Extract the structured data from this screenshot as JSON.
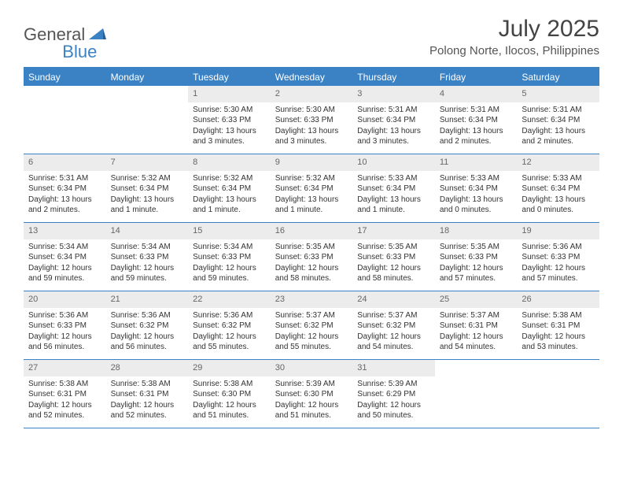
{
  "brand": {
    "part1": "General",
    "part2": "Blue"
  },
  "title": "July 2025",
  "location": "Polong Norte, Ilocos, Philippines",
  "colors": {
    "accent": "#3b82c4",
    "header_bg": "#3b82c4",
    "header_text": "#ffffff",
    "daynum_bg": "#ececec",
    "border": "#3b82c4",
    "text": "#333333"
  },
  "day_labels": [
    "Sunday",
    "Monday",
    "Tuesday",
    "Wednesday",
    "Thursday",
    "Friday",
    "Saturday"
  ],
  "weeks": [
    [
      {
        "n": "",
        "sr": "",
        "ss": "",
        "dl": ""
      },
      {
        "n": "",
        "sr": "",
        "ss": "",
        "dl": ""
      },
      {
        "n": "1",
        "sr": "Sunrise: 5:30 AM",
        "ss": "Sunset: 6:33 PM",
        "dl": "Daylight: 13 hours and 3 minutes."
      },
      {
        "n": "2",
        "sr": "Sunrise: 5:30 AM",
        "ss": "Sunset: 6:33 PM",
        "dl": "Daylight: 13 hours and 3 minutes."
      },
      {
        "n": "3",
        "sr": "Sunrise: 5:31 AM",
        "ss": "Sunset: 6:34 PM",
        "dl": "Daylight: 13 hours and 3 minutes."
      },
      {
        "n": "4",
        "sr": "Sunrise: 5:31 AM",
        "ss": "Sunset: 6:34 PM",
        "dl": "Daylight: 13 hours and 2 minutes."
      },
      {
        "n": "5",
        "sr": "Sunrise: 5:31 AM",
        "ss": "Sunset: 6:34 PM",
        "dl": "Daylight: 13 hours and 2 minutes."
      }
    ],
    [
      {
        "n": "6",
        "sr": "Sunrise: 5:31 AM",
        "ss": "Sunset: 6:34 PM",
        "dl": "Daylight: 13 hours and 2 minutes."
      },
      {
        "n": "7",
        "sr": "Sunrise: 5:32 AM",
        "ss": "Sunset: 6:34 PM",
        "dl": "Daylight: 13 hours and 1 minute."
      },
      {
        "n": "8",
        "sr": "Sunrise: 5:32 AM",
        "ss": "Sunset: 6:34 PM",
        "dl": "Daylight: 13 hours and 1 minute."
      },
      {
        "n": "9",
        "sr": "Sunrise: 5:32 AM",
        "ss": "Sunset: 6:34 PM",
        "dl": "Daylight: 13 hours and 1 minute."
      },
      {
        "n": "10",
        "sr": "Sunrise: 5:33 AM",
        "ss": "Sunset: 6:34 PM",
        "dl": "Daylight: 13 hours and 1 minute."
      },
      {
        "n": "11",
        "sr": "Sunrise: 5:33 AM",
        "ss": "Sunset: 6:34 PM",
        "dl": "Daylight: 13 hours and 0 minutes."
      },
      {
        "n": "12",
        "sr": "Sunrise: 5:33 AM",
        "ss": "Sunset: 6:34 PM",
        "dl": "Daylight: 13 hours and 0 minutes."
      }
    ],
    [
      {
        "n": "13",
        "sr": "Sunrise: 5:34 AM",
        "ss": "Sunset: 6:34 PM",
        "dl": "Daylight: 12 hours and 59 minutes."
      },
      {
        "n": "14",
        "sr": "Sunrise: 5:34 AM",
        "ss": "Sunset: 6:33 PM",
        "dl": "Daylight: 12 hours and 59 minutes."
      },
      {
        "n": "15",
        "sr": "Sunrise: 5:34 AM",
        "ss": "Sunset: 6:33 PM",
        "dl": "Daylight: 12 hours and 59 minutes."
      },
      {
        "n": "16",
        "sr": "Sunrise: 5:35 AM",
        "ss": "Sunset: 6:33 PM",
        "dl": "Daylight: 12 hours and 58 minutes."
      },
      {
        "n": "17",
        "sr": "Sunrise: 5:35 AM",
        "ss": "Sunset: 6:33 PM",
        "dl": "Daylight: 12 hours and 58 minutes."
      },
      {
        "n": "18",
        "sr": "Sunrise: 5:35 AM",
        "ss": "Sunset: 6:33 PM",
        "dl": "Daylight: 12 hours and 57 minutes."
      },
      {
        "n": "19",
        "sr": "Sunrise: 5:36 AM",
        "ss": "Sunset: 6:33 PM",
        "dl": "Daylight: 12 hours and 57 minutes."
      }
    ],
    [
      {
        "n": "20",
        "sr": "Sunrise: 5:36 AM",
        "ss": "Sunset: 6:33 PM",
        "dl": "Daylight: 12 hours and 56 minutes."
      },
      {
        "n": "21",
        "sr": "Sunrise: 5:36 AM",
        "ss": "Sunset: 6:32 PM",
        "dl": "Daylight: 12 hours and 56 minutes."
      },
      {
        "n": "22",
        "sr": "Sunrise: 5:36 AM",
        "ss": "Sunset: 6:32 PM",
        "dl": "Daylight: 12 hours and 55 minutes."
      },
      {
        "n": "23",
        "sr": "Sunrise: 5:37 AM",
        "ss": "Sunset: 6:32 PM",
        "dl": "Daylight: 12 hours and 55 minutes."
      },
      {
        "n": "24",
        "sr": "Sunrise: 5:37 AM",
        "ss": "Sunset: 6:32 PM",
        "dl": "Daylight: 12 hours and 54 minutes."
      },
      {
        "n": "25",
        "sr": "Sunrise: 5:37 AM",
        "ss": "Sunset: 6:31 PM",
        "dl": "Daylight: 12 hours and 54 minutes."
      },
      {
        "n": "26",
        "sr": "Sunrise: 5:38 AM",
        "ss": "Sunset: 6:31 PM",
        "dl": "Daylight: 12 hours and 53 minutes."
      }
    ],
    [
      {
        "n": "27",
        "sr": "Sunrise: 5:38 AM",
        "ss": "Sunset: 6:31 PM",
        "dl": "Daylight: 12 hours and 52 minutes."
      },
      {
        "n": "28",
        "sr": "Sunrise: 5:38 AM",
        "ss": "Sunset: 6:31 PM",
        "dl": "Daylight: 12 hours and 52 minutes."
      },
      {
        "n": "29",
        "sr": "Sunrise: 5:38 AM",
        "ss": "Sunset: 6:30 PM",
        "dl": "Daylight: 12 hours and 51 minutes."
      },
      {
        "n": "30",
        "sr": "Sunrise: 5:39 AM",
        "ss": "Sunset: 6:30 PM",
        "dl": "Daylight: 12 hours and 51 minutes."
      },
      {
        "n": "31",
        "sr": "Sunrise: 5:39 AM",
        "ss": "Sunset: 6:29 PM",
        "dl": "Daylight: 12 hours and 50 minutes."
      },
      {
        "n": "",
        "sr": "",
        "ss": "",
        "dl": ""
      },
      {
        "n": "",
        "sr": "",
        "ss": "",
        "dl": ""
      }
    ]
  ]
}
